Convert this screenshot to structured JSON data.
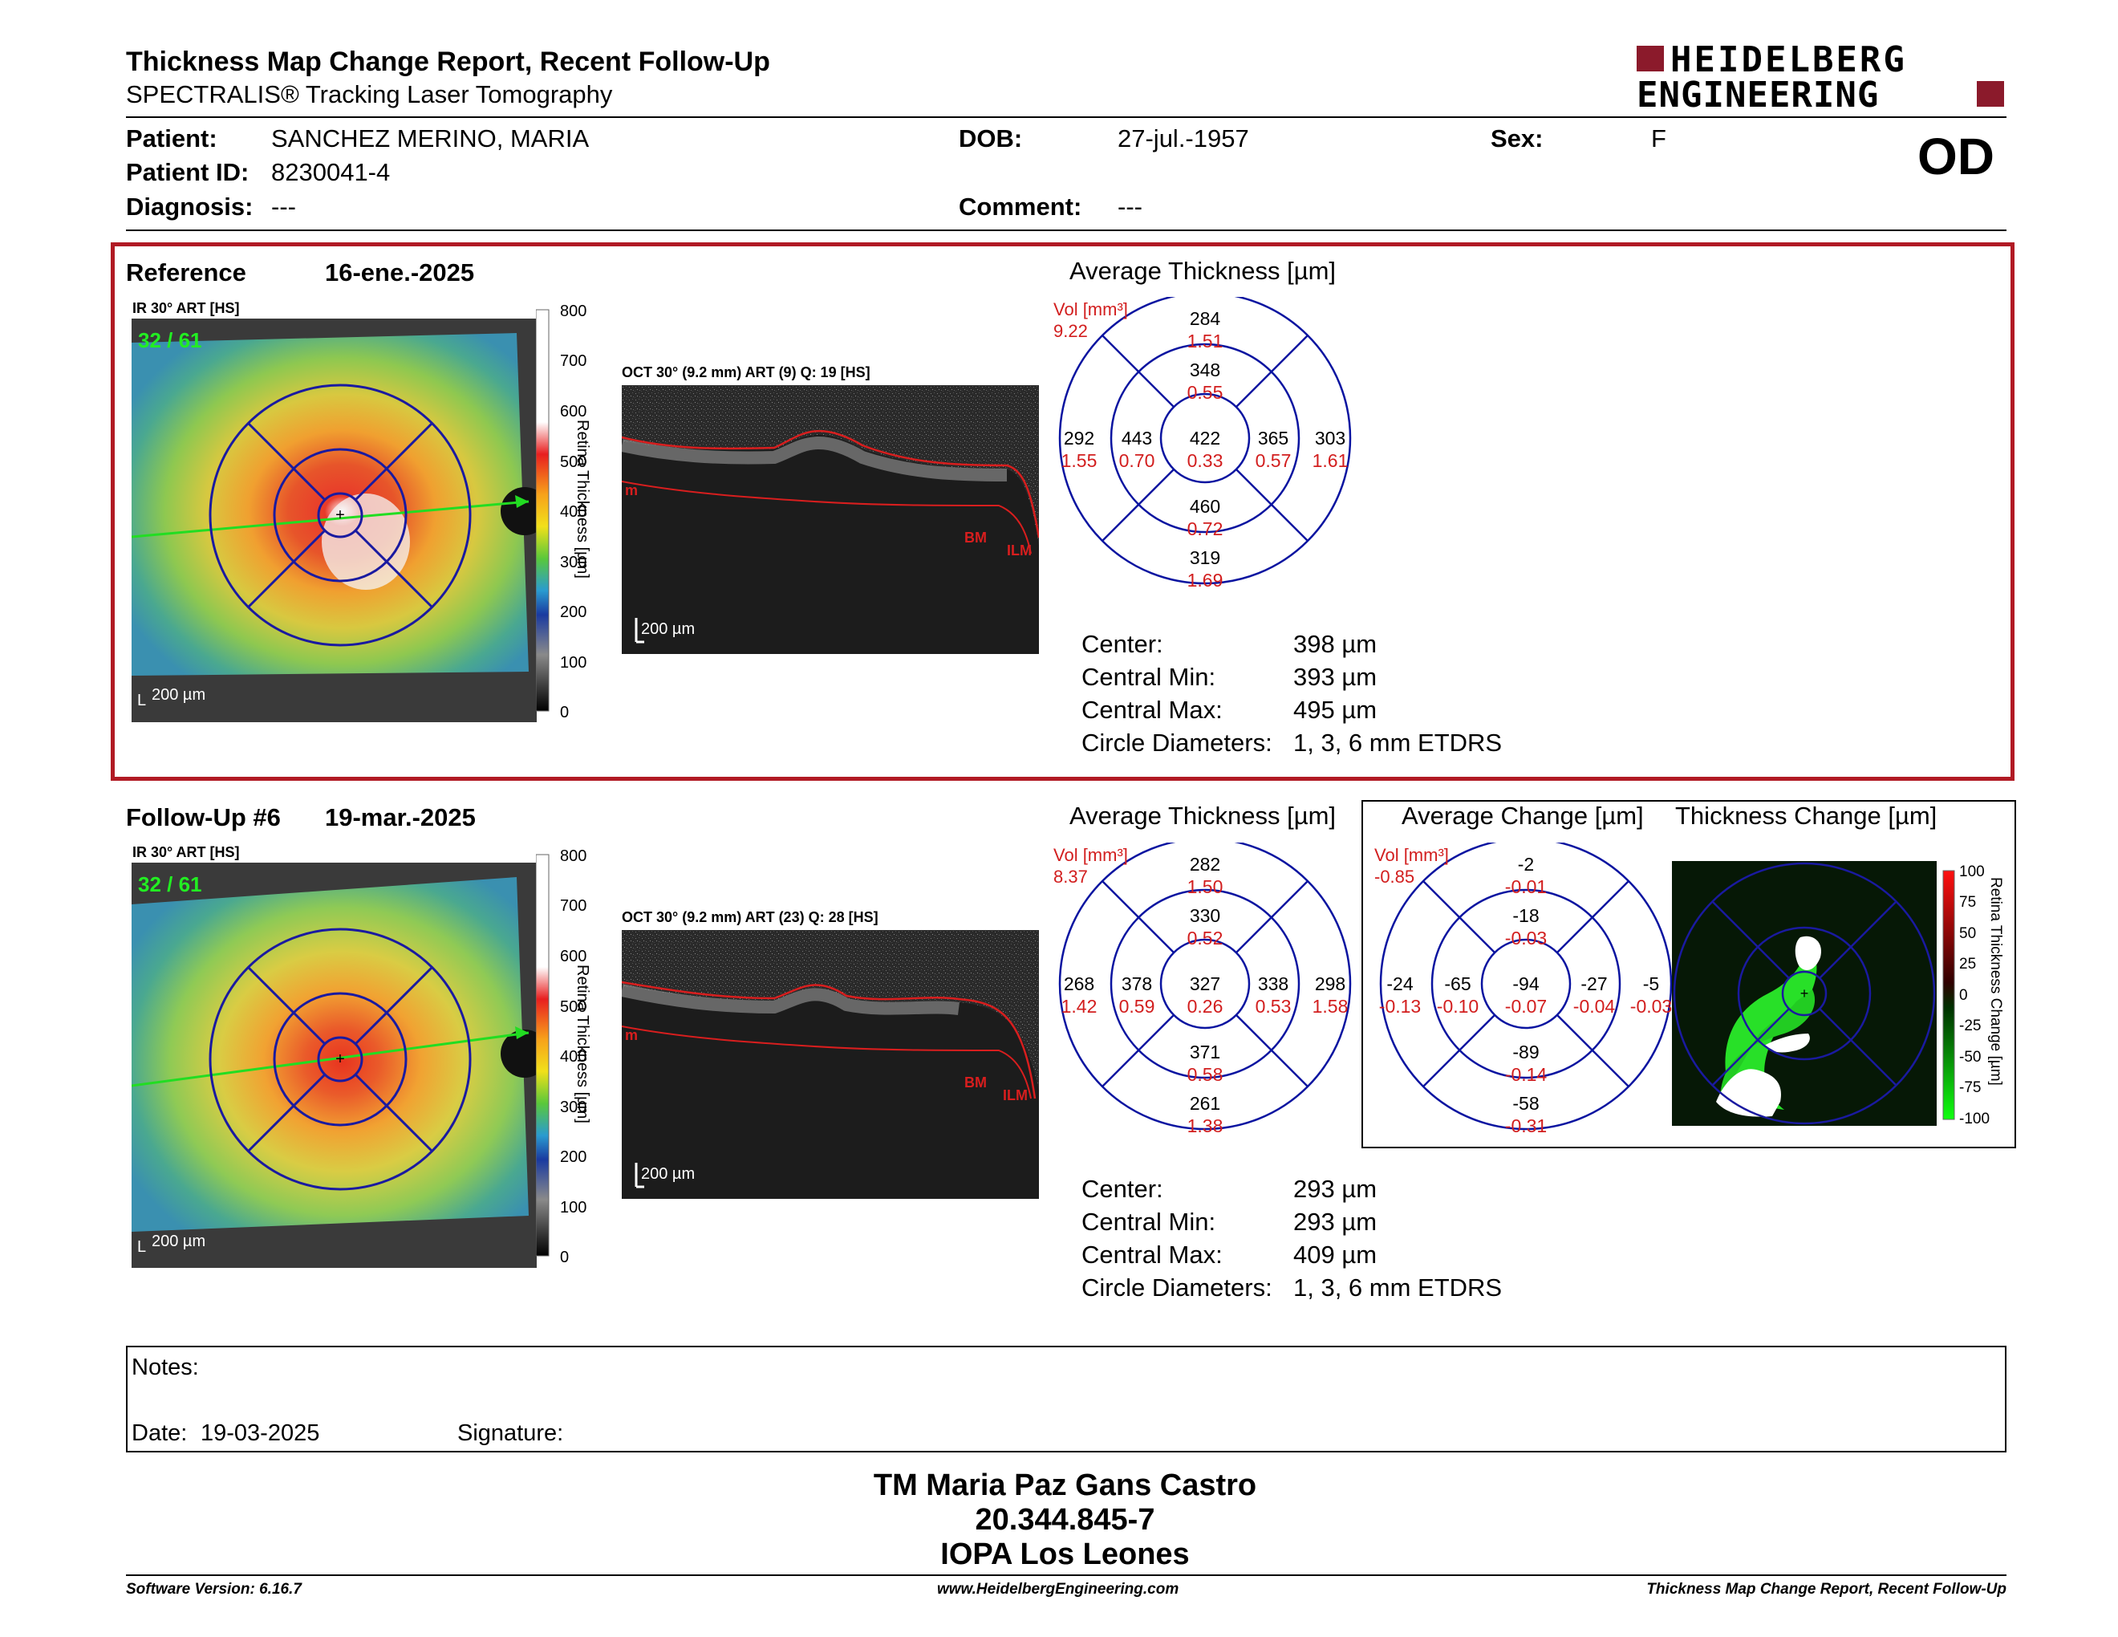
{
  "header": {
    "title": "Thickness Map Change Report, Recent Follow-Up",
    "subtitle": "SPECTRALIS® Tracking Laser Tomography",
    "brand_line1": "HEIDELBERG",
    "brand_line2": "ENGINEERING",
    "eye": "OD"
  },
  "patient": {
    "patient_label": "Patient:",
    "patient": "SANCHEZ MERINO, MARIA",
    "id_label": "Patient ID:",
    "id": "8230041-4",
    "diagnosis_label": "Diagnosis:",
    "diagnosis": "---",
    "dob_label": "DOB:",
    "dob": "27-jul.-1957",
    "comment_label": "Comment:",
    "comment": "---",
    "sex_label": "Sex:",
    "sex": "F"
  },
  "reference": {
    "label": "Reference",
    "date": "16-ene.-2025",
    "ir_label": "IR 30° ART [HS]",
    "ir_counter": "32 / 61",
    "ir_scale": "200 µm",
    "oct_label": "OCT 30° (9.2 mm) ART (9) Q: 19 [HS]",
    "oct_scale": "200 µm",
    "avg_title": "Average Thickness [µm]",
    "vol_label": "Vol [mm³]",
    "vol_total": "9.22",
    "etdrs": {
      "sup_outer": "284",
      "sup_outer_vol": "1.51",
      "sup_inner": "348",
      "sup_inner_vol": "0.55",
      "temp_outer": "292",
      "temp_outer_vol": "1.55",
      "temp_inner": "443",
      "temp_inner_vol": "0.70",
      "center": "422",
      "center_vol": "0.33",
      "nas_inner": "365",
      "nas_inner_vol": "0.57",
      "nas_outer": "303",
      "nas_outer_vol": "1.61",
      "inf_inner": "460",
      "inf_inner_vol": "0.72",
      "inf_outer": "319",
      "inf_outer_vol": "1.69"
    },
    "metrics": {
      "center_label": "Center:",
      "center": "398 µm",
      "min_label": "Central Min:",
      "min": "393 µm",
      "max_label": "Central Max:",
      "max": "495 µm",
      "diam_label": "Circle Diameters:",
      "diam": "1, 3, 6 mm ETDRS"
    }
  },
  "followup": {
    "label": "Follow-Up #6",
    "date": "19-mar.-2025",
    "ir_label": "IR 30° ART [HS]",
    "ir_counter": "32 / 61",
    "ir_scale": "200 µm",
    "oct_label": "OCT 30° (9.2 mm) ART (23) Q: 28 [HS]",
    "oct_scale": "200 µm",
    "avg_title": "Average Thickness [µm]",
    "vol_label": "Vol [mm³]",
    "vol_total": "8.37",
    "etdrs": {
      "sup_outer": "282",
      "sup_outer_vol": "1.50",
      "sup_inner": "330",
      "sup_inner_vol": "0.52",
      "temp_outer": "268",
      "temp_outer_vol": "1.42",
      "temp_inner": "378",
      "temp_inner_vol": "0.59",
      "center": "327",
      "center_vol": "0.26",
      "nas_inner": "338",
      "nas_inner_vol": "0.53",
      "nas_outer": "298",
      "nas_outer_vol": "1.58",
      "inf_inner": "371",
      "inf_inner_vol": "0.58",
      "inf_outer": "261",
      "inf_outer_vol": "1.38"
    },
    "metrics": {
      "center_label": "Center:",
      "center": "293 µm",
      "min_label": "Central Min:",
      "min": "293 µm",
      "max_label": "Central Max:",
      "max": "409 µm",
      "diam_label": "Circle Diameters:",
      "diam": "1, 3, 6 mm ETDRS"
    }
  },
  "change": {
    "avg_title": "Average Change [µm]",
    "map_title": "Thickness Change [µm]",
    "vol_label": "Vol [mm³]",
    "vol_total": "-0.85",
    "etdrs": {
      "sup_outer": "-2",
      "sup_outer_vol": "-0.01",
      "sup_inner": "-18",
      "sup_inner_vol": "-0.03",
      "temp_outer": "-24",
      "temp_outer_vol": "-0.13",
      "temp_inner": "-65",
      "temp_inner_vol": "-0.10",
      "center": "-94",
      "center_vol": "-0.07",
      "nas_inner": "-27",
      "nas_inner_vol": "-0.04",
      "nas_outer": "-5",
      "nas_outer_vol": "-0.03",
      "inf_inner": "-89",
      "inf_inner_vol": "-0.14",
      "inf_outer": "-58",
      "inf_outer_vol": "-0.31"
    },
    "scale_title": "Retina Thickness Change [µm]",
    "scale_ticks": [
      "100",
      "75",
      "50",
      "25",
      "0",
      "-25",
      "-50",
      "-75",
      "-100"
    ]
  },
  "thickness_scale": {
    "title": "Retina Thickness [µm]",
    "ticks": [
      "800",
      "700",
      "600",
      "500",
      "400",
      "300",
      "200",
      "100",
      "0"
    ]
  },
  "oct_layers": {
    "top": "ILM",
    "bottom": "BM",
    "left_mark": "m"
  },
  "notes": {
    "label": "Notes:",
    "date_label": "Date:",
    "date": "19-03-2025",
    "signature_label": "Signature:"
  },
  "signer": {
    "name": "TM Maria Paz Gans Castro",
    "id": "20.344.845-7",
    "institution": "IOPA Los Leones"
  },
  "footer": {
    "software": "Software Version: 6.16.7",
    "website": "www.HeidelbergEngineering.com",
    "report_name": "Thickness Map Change Report, Recent Follow-Up"
  },
  "colors": {
    "accent_red": "#b11a24",
    "value_red": "#d21e1e",
    "chart_blue": "#0a14a0",
    "brand": "#8b1a2b"
  }
}
